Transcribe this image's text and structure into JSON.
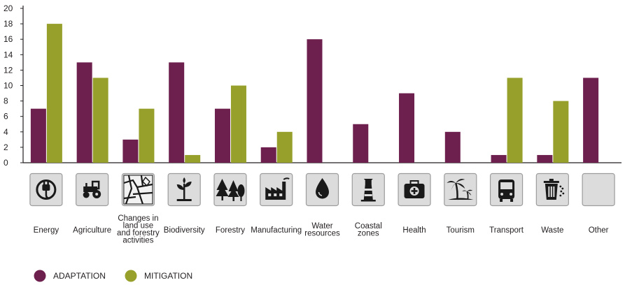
{
  "chart_data": {
    "type": "bar",
    "ylim": [
      0,
      20
    ],
    "yticks": [
      0,
      2,
      4,
      6,
      8,
      10,
      12,
      14,
      16,
      18,
      20
    ],
    "categories": [
      {
        "label": [
          "Energy"
        ],
        "icon": "plug-icon"
      },
      {
        "label": [
          "Agriculture"
        ],
        "icon": "tractor-icon"
      },
      {
        "label": [
          "Changes in",
          "land use",
          "and forestry",
          "activities"
        ],
        "icon": "map-icon"
      },
      {
        "label": [
          "Biodiversity"
        ],
        "icon": "plant-icon"
      },
      {
        "label": [
          "Forestry"
        ],
        "icon": "trees-icon"
      },
      {
        "label": [
          "Manufacturing"
        ],
        "icon": "factory-icon"
      },
      {
        "label": [
          "Water",
          "resources"
        ],
        "icon": "water-drop-icon"
      },
      {
        "label": [
          "Coastal",
          "zones"
        ],
        "icon": "lighthouse-icon"
      },
      {
        "label": [
          "Health"
        ],
        "icon": "first-aid-kit-icon"
      },
      {
        "label": [
          "Tourism"
        ],
        "icon": "palm-tree-icon"
      },
      {
        "label": [
          "Transport"
        ],
        "icon": "bus-icon"
      },
      {
        "label": [
          "Waste"
        ],
        "icon": "trash-can-icon"
      },
      {
        "label": [
          "Other"
        ],
        "icon": "blank-icon"
      }
    ],
    "series": [
      {
        "name": "ADAPTATION",
        "color": "#6d1f4d",
        "values": [
          7,
          13,
          3,
          13,
          7,
          2,
          16,
          5,
          9,
          4,
          1,
          1,
          11
        ]
      },
      {
        "name": "MITIGATION",
        "color": "#97a02a",
        "values": [
          18,
          11,
          7,
          1,
          10,
          4,
          0,
          0,
          0,
          0,
          11,
          8,
          0
        ]
      }
    ],
    "legend_position": "bottom-left",
    "grid": false
  }
}
